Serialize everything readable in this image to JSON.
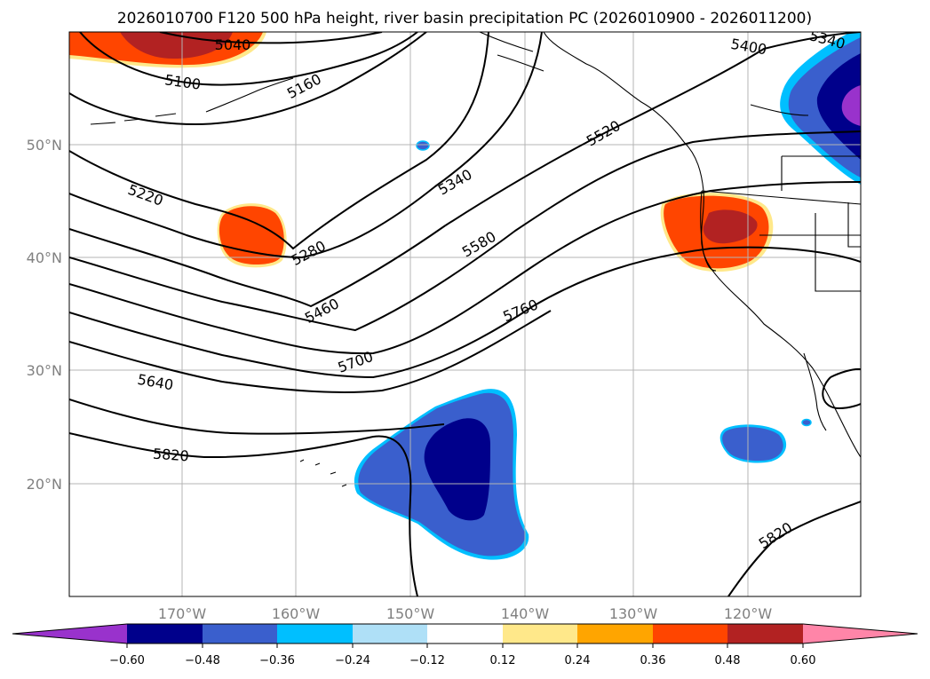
{
  "title": "2026010700 F120 500 hPa height, river basin precipitation PC (2026010900 - 2026011200)",
  "lat_labels": [
    "50°N",
    "40°N",
    "30°N",
    "20°N"
  ],
  "lon_labels": [
    "170°W",
    "160°W",
    "150°W",
    "140°W",
    "130°W",
    "120°W"
  ],
  "contour_labels": [
    "5040",
    "5100",
    "5160",
    "5220",
    "5280",
    "5340",
    "5400",
    "5340",
    "5460",
    "5520",
    "5580",
    "5640",
    "5700",
    "5760",
    "5820",
    "5820"
  ],
  "colorbar": {
    "ticks": [
      "−0.60",
      "−0.48",
      "−0.36",
      "−0.24",
      "−0.12",
      "0.12",
      "0.24",
      "0.36",
      "0.48",
      "0.60"
    ],
    "colors": [
      "#9932cc",
      "#00008b",
      "#3a5fcd",
      "#00bfff",
      "#afe0f7",
      "#ffffff",
      "#ffe88a",
      "#ffa500",
      "#ff4500",
      "#b22222",
      "#ff85a8"
    ]
  }
}
